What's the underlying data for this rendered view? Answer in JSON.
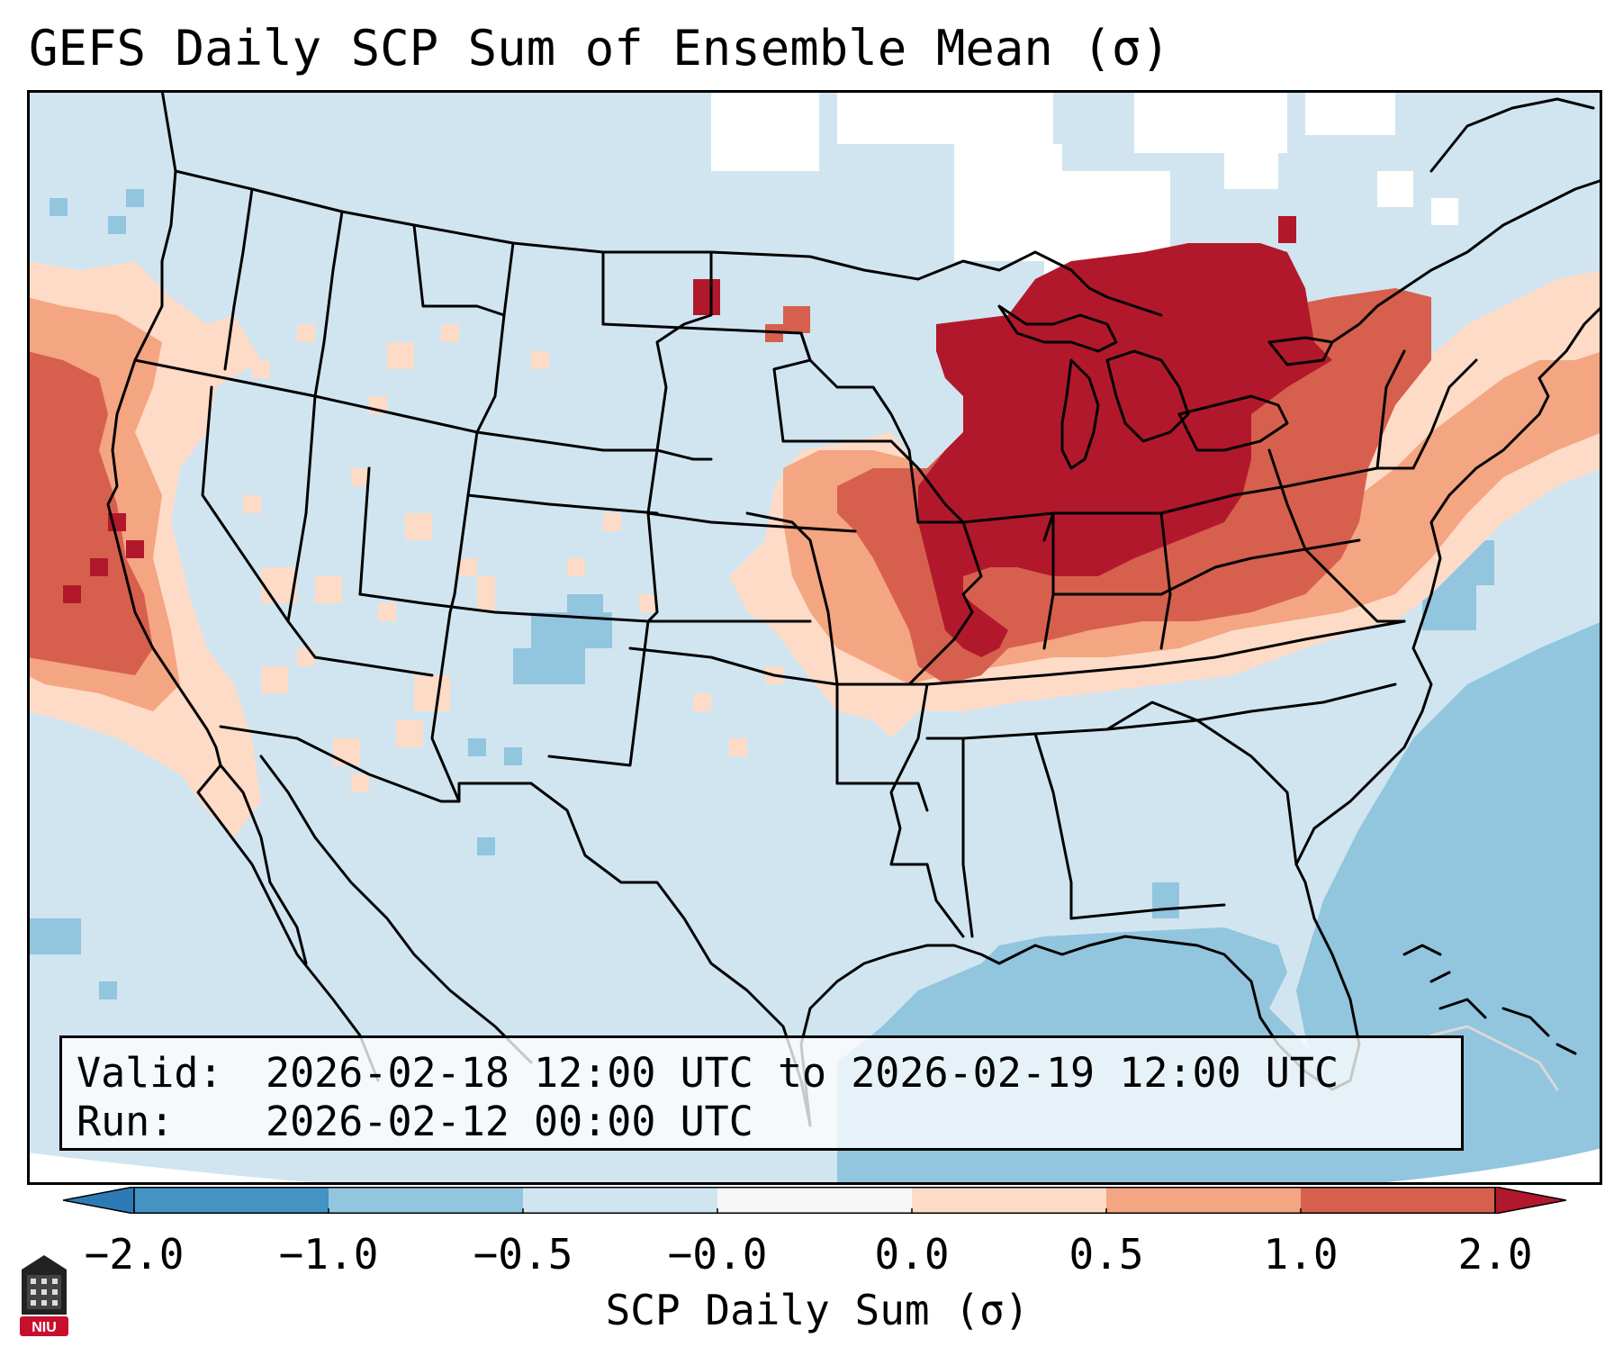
{
  "title": "GEFS Daily SCP Sum of Ensemble Mean (σ)",
  "info": {
    "valid_label": "Valid:",
    "valid_value": "2026-02-18 12:00 UTC to 2026-02-19 12:00 UTC",
    "run_label": "Run:",
    "run_value": "2026-02-12 00:00 UTC"
  },
  "colorbar": {
    "label": "SCP Daily Sum (σ)",
    "ticks": [
      "−2.0",
      "−1.0",
      "−0.5",
      "−0.0",
      "0.0",
      "0.5",
      "1.0",
      "2.0"
    ],
    "bins": [
      {
        "range": "below -2.0",
        "color": "#2c7bb6"
      },
      {
        "range": "-2.0 to -1.0",
        "color": "#4393c3"
      },
      {
        "range": "-1.0 to -0.5",
        "color": "#92c5de"
      },
      {
        "range": "-0.5 to 0.0",
        "color": "#d1e5f0"
      },
      {
        "range": "0.0 to 0.0",
        "color": "#f7f7f7"
      },
      {
        "range": "0.0 to 0.5",
        "color": "#fddbc7"
      },
      {
        "range": "0.5 to 1.0",
        "color": "#f4a582"
      },
      {
        "range": "1.0 to 2.0",
        "color": "#d6604d"
      },
      {
        "range": "above 2.0",
        "color": "#b2182b"
      }
    ]
  },
  "map": {
    "region": "Contiguous United States",
    "projection": "Lambert conformal",
    "field": "GEFS ensemble mean daily SCP sum anomaly",
    "maximum_anomaly_region": "Upper Midwest and Great Lakes"
  },
  "logo_text": "NIU"
}
